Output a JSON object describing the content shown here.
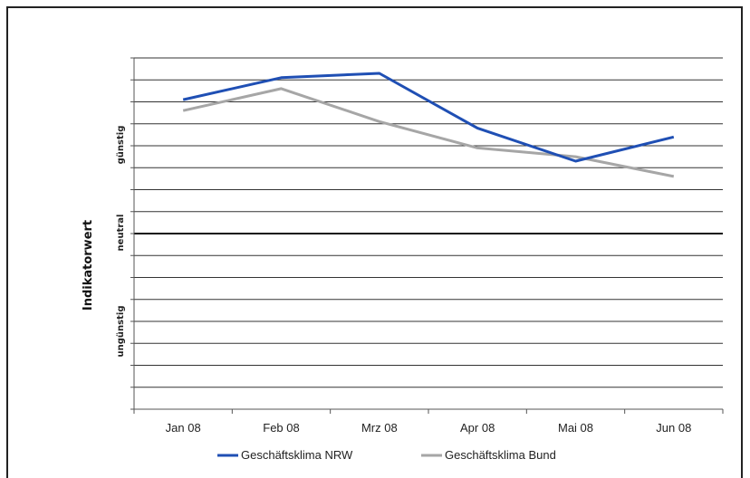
{
  "chart_data": {
    "type": "line",
    "ylabel": "Indikatorwert",
    "y_category_labels": [
      "günstig",
      "neutral",
      "ungünstig"
    ],
    "categories": [
      "Jan 08",
      "Feb 08",
      "Mrz 08",
      "Apr 08",
      "Mai 08",
      "Jun 08"
    ],
    "ylim": [
      -8,
      8
    ],
    "y_tick_step": 1,
    "grid": true,
    "legend_position": "bottom",
    "series": [
      {
        "name": "Geschäftsklima NRW",
        "color": "#1f4fb4",
        "values": [
          6.1,
          7.1,
          7.3,
          4.8,
          3.3,
          4.4
        ]
      },
      {
        "name": "Geschäftsklima Bund",
        "color": "#a6a6a6",
        "values": [
          5.6,
          6.6,
          5.1,
          3.9,
          3.5,
          2.6
        ]
      }
    ]
  }
}
